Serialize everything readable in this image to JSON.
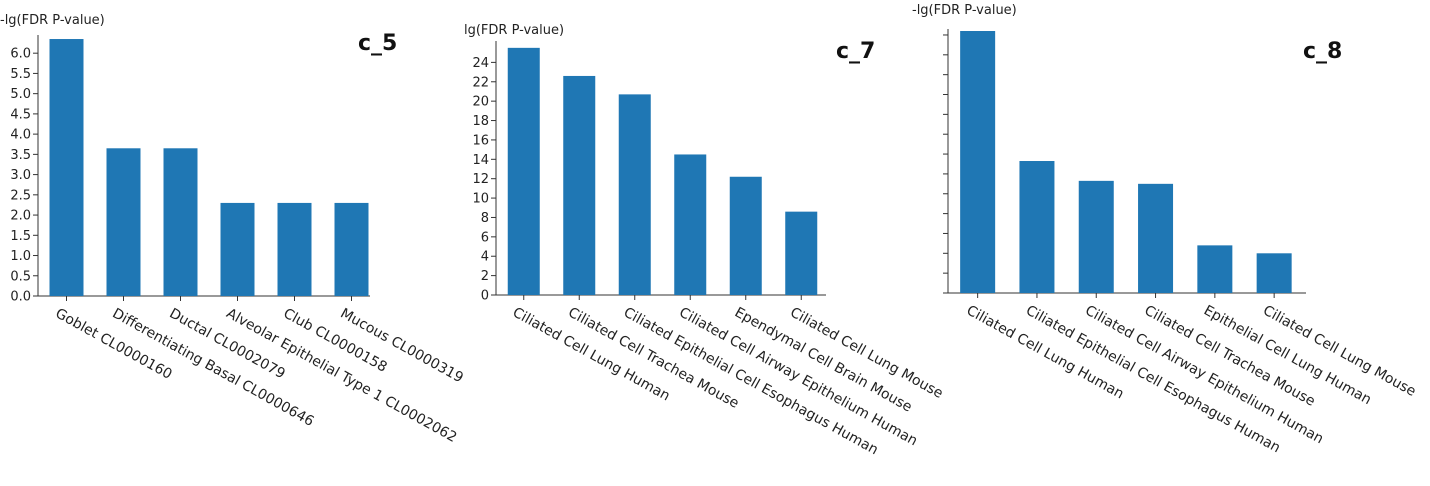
{
  "chart_data": [
    {
      "type": "bar",
      "title": "c_5",
      "ylabel": "-lg(FDR P-value)",
      "categories": [
        "Goblet CL0000160",
        "Differentiating Basal CL0000646",
        "Ductal CL0002079",
        "Alveolar Epithelial Type 1 CL0002062",
        "Club CL0000158",
        "Mucous CL0000319"
      ],
      "values": [
        6.35,
        3.65,
        3.65,
        2.3,
        2.3,
        2.3
      ],
      "ylim": [
        0,
        6.4
      ],
      "yticks": [
        "0.0",
        "0.5",
        "1.0",
        "1.5",
        "2.0",
        "2.5",
        "3.0",
        "3.5",
        "4.0",
        "4.5",
        "5.0",
        "5.5",
        "6.0"
      ],
      "ytick_values": [
        0,
        0.5,
        1,
        1.5,
        2,
        2.5,
        3,
        3.5,
        4,
        4.5,
        5,
        5.5,
        6
      ],
      "color": "#1f77b4",
      "grid": false
    },
    {
      "type": "bar",
      "title": "c_7",
      "ylabel": "lg(FDR P-value)",
      "categories": [
        "Ciliated Cell Lung Human",
        "Ciliated Cell Trachea Mouse",
        "Ciliated Epithelial Cell Esophagus Human",
        "Ciliated Cell Airway Epithelium Human",
        "Ependymal Cell Brain Mouse",
        "Ciliated Cell Lung Mouse"
      ],
      "values": [
        25.5,
        22.6,
        20.7,
        14.5,
        12.2,
        8.6
      ],
      "ylim": [
        0,
        26
      ],
      "yticks": [
        "0",
        "2",
        "4",
        "6",
        "8",
        "10",
        "12",
        "14",
        "16",
        "18",
        "20",
        "22",
        "24"
      ],
      "ytick_values": [
        0,
        2,
        4,
        6,
        8,
        10,
        12,
        14,
        16,
        18,
        20,
        22,
        24
      ],
      "color": "#1f77b4",
      "grid": false
    },
    {
      "type": "bar",
      "title": "c_8",
      "ylabel": "-lg(FDR P-value)",
      "categories": [
        "Ciliated Cell Lung Human",
        "Ciliated Epithelial Cell Esophagus Human",
        "Ciliated Cell Airway Epithelium Human",
        "Ciliated Cell Trachea Mouse",
        "Epithelial Cell Lung Human",
        "Ciliated Cell Lung Mouse"
      ],
      "values": [
        26.4,
        13.3,
        11.3,
        11.0,
        4.8,
        4.0
      ],
      "ylim": [
        0,
        26.4
      ],
      "yticks": [],
      "ytick_values": [
        0,
        2,
        4,
        6,
        8,
        10,
        12,
        14,
        16,
        18,
        20,
        22,
        24,
        26
      ],
      "color": "#1f77b4",
      "grid": false
    }
  ]
}
